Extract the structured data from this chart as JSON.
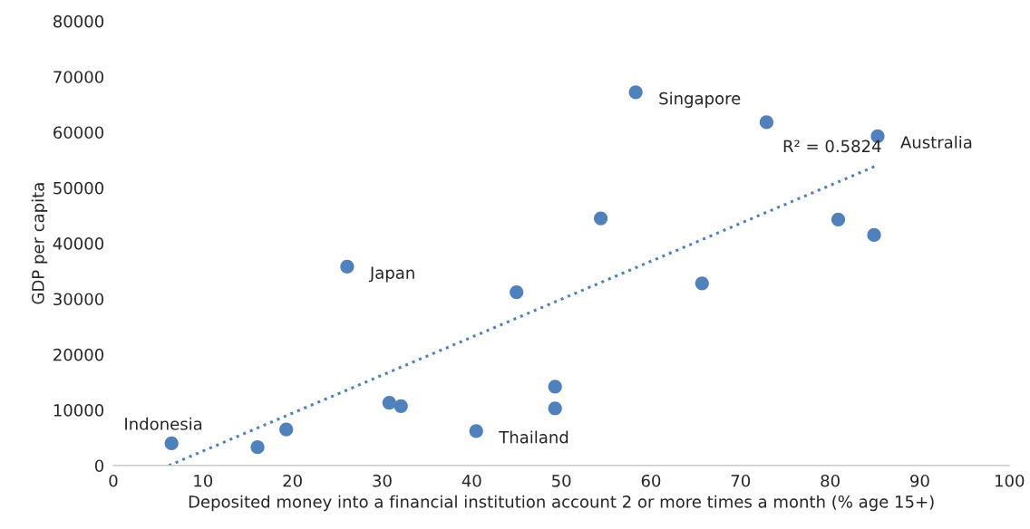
{
  "chart_data": {
    "type": "scatter",
    "xlabel": "Deposited money into a financial institution account 2 or more times a month (% age 15+)",
    "ylabel": "GDP per capita",
    "xlim": [
      0,
      100
    ],
    "xticks": [
      0,
      10,
      20,
      30,
      40,
      50,
      60,
      70,
      80,
      90,
      100
    ],
    "ylim": [
      0,
      80000
    ],
    "yticks": [
      0,
      10000,
      20000,
      30000,
      40000,
      50000,
      60000,
      70000,
      80000
    ],
    "grid": false,
    "legend": false,
    "marker": "circle",
    "series": [
      {
        "color": "#4f81bd",
        "x": [
          6.5,
          16.1,
          19.3,
          26.1,
          30.8,
          32.1,
          40.5,
          45.0,
          49.3,
          49.3,
          54.4,
          58.3,
          65.7,
          72.9,
          80.9,
          84.9,
          85.3
        ],
        "values": [
          4000,
          3300,
          6500,
          35800,
          11300,
          10700,
          6200,
          31200,
          14200,
          10300,
          44500,
          67200,
          32800,
          61800,
          44300,
          41500,
          59300
        ]
      },
      {
        "type": "line",
        "color": "#4f81bd",
        "line_style": "dotted",
        "marker": "none",
        "x": [
          6.2,
          85.2
        ],
        "values": [
          0,
          54000
        ]
      }
    ],
    "annotations": [
      {
        "text": "Indonesia",
        "x": 6.5,
        "y": 4000
      },
      {
        "text": "Japan",
        "x": 26.1,
        "y": 35800
      },
      {
        "text": "Thailand",
        "x": 40.5,
        "y": 6200
      },
      {
        "text": "Singapore",
        "x": 58.3,
        "y": 67200
      },
      {
        "text": "Australia",
        "x": 85.3,
        "y": 59300
      },
      {
        "text": "R² = 0.5824",
        "x": 85.2,
        "y": 54000
      }
    ]
  }
}
